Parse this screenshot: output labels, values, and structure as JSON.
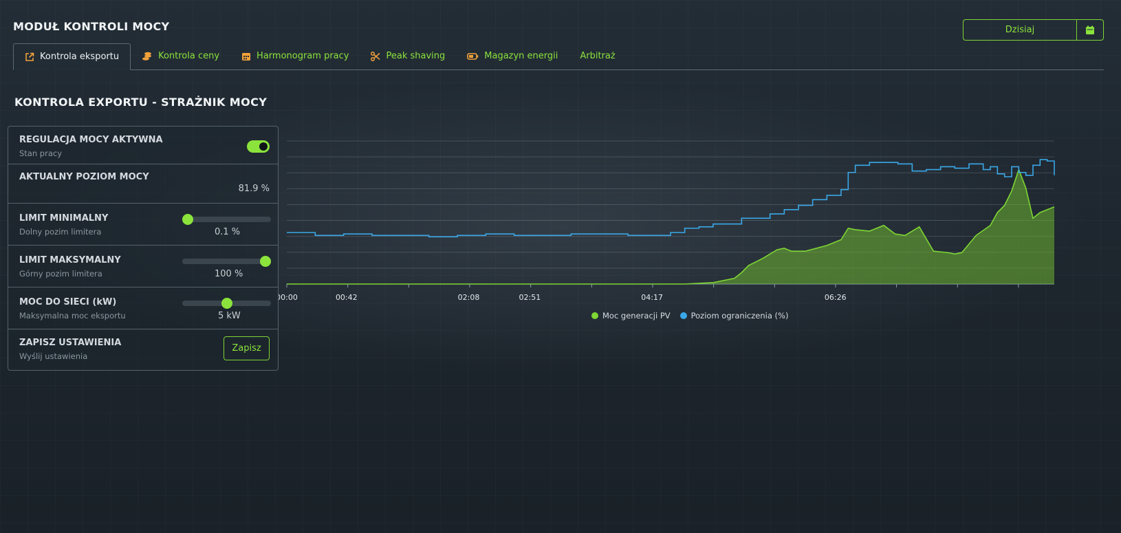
{
  "header": {
    "title": "MODUŁ KONTROLI MOCY",
    "date_button": "Dzisiaj"
  },
  "tabs": [
    {
      "label": "Kontrola eksportu",
      "icon": "external-link-icon",
      "active": true
    },
    {
      "label": "Kontrola ceny",
      "icon": "coins-icon",
      "active": false
    },
    {
      "label": "Harmonogram pracy",
      "icon": "calendar-grid-icon",
      "active": false
    },
    {
      "label": "Peak shaving",
      "icon": "scissors-icon",
      "active": false
    },
    {
      "label": "Magazyn energii",
      "icon": "battery-icon",
      "active": false
    },
    {
      "label": "Arbitraż",
      "icon": "",
      "active": false
    }
  ],
  "section_title": "KONTROLA EXPORTU - STRAŻNIK MOCY",
  "panel": {
    "regulation": {
      "label": "REGULACJA MOCY AKTYWNA",
      "sub": "Stan pracy",
      "enabled": true
    },
    "current_power": {
      "label": "AKTUALNY POZIOM MOCY",
      "value": "81.9 %"
    },
    "limit_min": {
      "label": "LIMIT MINIMALNY",
      "sub": "Dolny pozim limitera",
      "value": "0.1 %",
      "level": 0.001
    },
    "limit_max": {
      "label": "LIMIT MAKSYMALNY",
      "sub": "Górny pozim limitera",
      "value": "100 %",
      "level": 1.0
    },
    "grid_power": {
      "label": "MOC DO SIECI (kW)",
      "sub": "Maksymalna moc eksportu",
      "value": "5 kW",
      "level": 0.5
    },
    "save": {
      "label": "ZAPISZ USTAWIENIA",
      "sub": "Wyślij ustawienia",
      "button": "Zapisz"
    }
  },
  "colors": {
    "accent": "#8be33c",
    "pv_series": "#7fd634",
    "limit_series": "#3aa8e8"
  },
  "chart_data": {
    "type": "line",
    "x_ticks": [
      "00:00",
      "00:42",
      "02:08",
      "02:51",
      "04:17",
      "06:26"
    ],
    "x_tick_minutes": [
      0,
      42,
      128,
      171,
      257,
      386
    ],
    "x_range_minutes": [
      0,
      540
    ],
    "y_range": [
      0,
      100
    ],
    "grid": true,
    "legend_position": "bottom-center",
    "series": [
      {
        "name": "Moc generacji PV",
        "kind": "area",
        "x": [
          0,
          230,
          245,
          260,
          280,
          300,
          315,
          320,
          325,
          335,
          345,
          350,
          355,
          365,
          380,
          390,
          395,
          400,
          410,
          420,
          428,
          435,
          445,
          455,
          465,
          470,
          475,
          485,
          495,
          500,
          505,
          510,
          515,
          520,
          525,
          530,
          535,
          540
        ],
        "values": [
          0,
          0,
          0,
          0,
          0,
          1,
          4,
          8,
          13,
          18,
          24,
          25,
          23,
          23,
          27,
          31,
          39,
          38,
          37,
          41,
          35,
          34,
          40,
          23,
          22,
          21,
          22,
          34,
          41,
          50,
          55,
          65,
          80,
          67,
          46,
          50,
          52,
          54
        ]
      },
      {
        "name": "Poziom ograniczenia (%)",
        "kind": "line",
        "x": [
          0,
          20,
          40,
          60,
          80,
          100,
          120,
          140,
          160,
          180,
          200,
          220,
          240,
          260,
          270,
          280,
          290,
          300,
          320,
          340,
          350,
          360,
          370,
          380,
          390,
          395,
          400,
          410,
          420,
          430,
          440,
          450,
          460,
          470,
          480,
          490,
          495,
          500,
          505,
          510,
          515,
          520,
          525,
          530,
          535,
          540
        ],
        "values": [
          36,
          34,
          35,
          34,
          34,
          33,
          34,
          35,
          34,
          34,
          35,
          35,
          34,
          34,
          36,
          39,
          40,
          42,
          46,
          49,
          52,
          55,
          59,
          62,
          66,
          78,
          83,
          85,
          85,
          84,
          79,
          80,
          82,
          81,
          84,
          80,
          82,
          77,
          75,
          82,
          78,
          76,
          83,
          87,
          86,
          76
        ]
      }
    ]
  }
}
